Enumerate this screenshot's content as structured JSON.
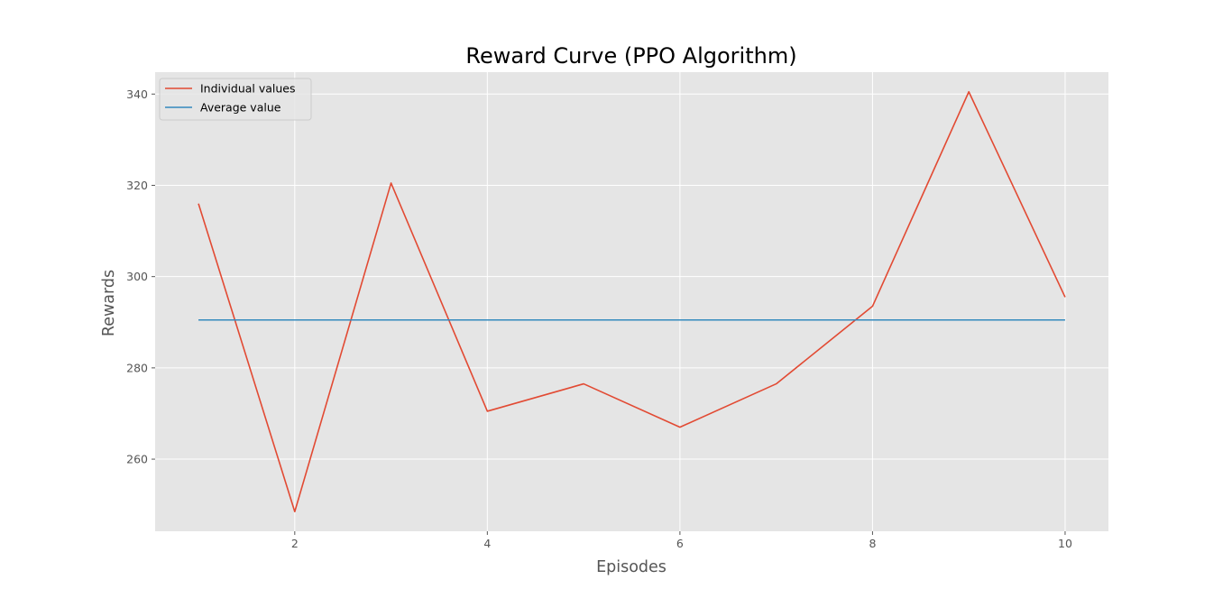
{
  "chart_data": {
    "type": "line",
    "title": "Reward Curve (PPO Algorithm)",
    "xlabel": "Episodes",
    "ylabel": "Rewards",
    "x": [
      1,
      2,
      3,
      4,
      5,
      6,
      7,
      8,
      9,
      10
    ],
    "series": [
      {
        "name": "Individual values",
        "color": "#E24A33",
        "values": [
          316.0,
          248.5,
          320.5,
          270.5,
          276.5,
          267.0,
          276.5,
          293.5,
          340.5,
          295.5
        ]
      },
      {
        "name": "Average value",
        "color": "#348ABD",
        "values": [
          290.5,
          290.5,
          290.5,
          290.5,
          290.5,
          290.5,
          290.5,
          290.5,
          290.5,
          290.5
        ]
      }
    ],
    "xlim": [
      0.55,
      10.45
    ],
    "ylim": [
      244.2,
      344.8
    ],
    "xticks": [
      2,
      4,
      6,
      8,
      10
    ],
    "yticks": [
      260,
      280,
      300,
      320,
      340
    ],
    "grid": true,
    "legend_position": "top-left",
    "background_color": "#E5E5E5",
    "grid_color": "#FFFFFF"
  }
}
